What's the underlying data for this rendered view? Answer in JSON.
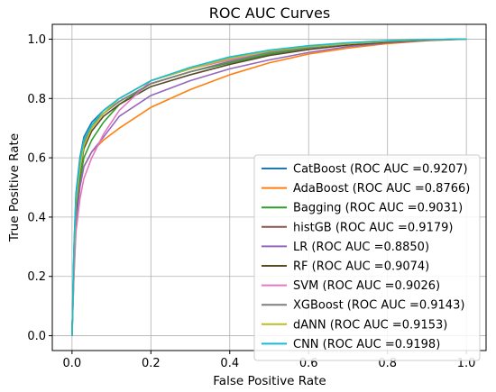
{
  "chart_data": {
    "type": "line",
    "title": "ROC AUC Curves",
    "xlabel": "False Positive Rate",
    "ylabel": "True Positive Rate",
    "xlim": [
      -0.05,
      1.05
    ],
    "ylim": [
      -0.05,
      1.05
    ],
    "xticks": [
      "0.0",
      "0.2",
      "0.4",
      "0.6",
      "0.8",
      "1.0"
    ],
    "yticks": [
      "0.0",
      "0.2",
      "0.4",
      "0.6",
      "0.8",
      "1.0"
    ],
    "grid": true,
    "legend_position": "lower-right",
    "series": [
      {
        "name": "CatBoost (ROC AUC =0.9207)",
        "color": "#1f77b4",
        "x": [
          0,
          0.005,
          0.01,
          0.02,
          0.03,
          0.05,
          0.08,
          0.12,
          0.2,
          0.3,
          0.4,
          0.5,
          0.6,
          0.7,
          0.8,
          0.9,
          1.0
        ],
        "y": [
          0,
          0.3,
          0.48,
          0.6,
          0.67,
          0.72,
          0.76,
          0.8,
          0.86,
          0.9,
          0.935,
          0.96,
          0.975,
          0.985,
          0.993,
          0.998,
          1.0
        ]
      },
      {
        "name": "AdaBoost (ROC AUC =0.8766)",
        "color": "#ff7f0e",
        "x": [
          0,
          0.005,
          0.01,
          0.02,
          0.03,
          0.05,
          0.08,
          0.12,
          0.2,
          0.3,
          0.4,
          0.5,
          0.6,
          0.7,
          0.8,
          0.9,
          1.0
        ],
        "y": [
          0,
          0.22,
          0.38,
          0.5,
          0.57,
          0.62,
          0.66,
          0.7,
          0.77,
          0.83,
          0.88,
          0.92,
          0.95,
          0.97,
          0.985,
          0.995,
          1.0
        ]
      },
      {
        "name": "Bagging (ROC AUC =0.9031)",
        "color": "#2ca02c",
        "x": [
          0,
          0.005,
          0.01,
          0.02,
          0.03,
          0.05,
          0.08,
          0.12,
          0.2,
          0.3,
          0.4,
          0.5,
          0.6,
          0.7,
          0.8,
          0.9,
          1.0
        ],
        "y": [
          0,
          0.25,
          0.4,
          0.52,
          0.6,
          0.66,
          0.72,
          0.78,
          0.85,
          0.89,
          0.92,
          0.95,
          0.97,
          0.985,
          0.993,
          0.998,
          1.0
        ]
      },
      {
        "name": "histGB (ROC AUC =0.9179)",
        "color": "#8c564b",
        "x": [
          0,
          0.005,
          0.01,
          0.02,
          0.03,
          0.05,
          0.08,
          0.12,
          0.2,
          0.3,
          0.4,
          0.5,
          0.6,
          0.7,
          0.8,
          0.9,
          1.0
        ],
        "y": [
          0,
          0.28,
          0.45,
          0.57,
          0.64,
          0.7,
          0.75,
          0.79,
          0.85,
          0.89,
          0.925,
          0.955,
          0.972,
          0.985,
          0.993,
          0.998,
          1.0
        ]
      },
      {
        "name": "LR (ROC AUC =0.8850)",
        "color": "#9467bd",
        "x": [
          0,
          0.005,
          0.01,
          0.02,
          0.03,
          0.05,
          0.08,
          0.12,
          0.2,
          0.3,
          0.4,
          0.5,
          0.6,
          0.7,
          0.8,
          0.9,
          1.0
        ],
        "y": [
          0,
          0.22,
          0.38,
          0.5,
          0.57,
          0.62,
          0.67,
          0.74,
          0.81,
          0.86,
          0.9,
          0.93,
          0.955,
          0.975,
          0.988,
          0.996,
          1.0
        ]
      },
      {
        "name": "RF (ROC AUC =0.9074)",
        "color": "#5b4a2a",
        "x": [
          0,
          0.005,
          0.01,
          0.02,
          0.03,
          0.05,
          0.08,
          0.12,
          0.2,
          0.3,
          0.4,
          0.5,
          0.6,
          0.7,
          0.8,
          0.9,
          1.0
        ],
        "y": [
          0,
          0.26,
          0.42,
          0.55,
          0.63,
          0.69,
          0.74,
          0.78,
          0.84,
          0.88,
          0.915,
          0.945,
          0.965,
          0.98,
          0.99,
          0.997,
          1.0
        ]
      },
      {
        "name": "SVM (ROC AUC =0.9026)",
        "color": "#e377c2",
        "x": [
          0,
          0.005,
          0.01,
          0.02,
          0.03,
          0.05,
          0.08,
          0.12,
          0.2,
          0.3,
          0.4,
          0.5,
          0.6,
          0.7,
          0.8,
          0.9,
          1.0
        ],
        "y": [
          0,
          0.2,
          0.35,
          0.46,
          0.53,
          0.6,
          0.68,
          0.76,
          0.86,
          0.9,
          0.93,
          0.955,
          0.972,
          0.985,
          0.993,
          0.998,
          1.0
        ]
      },
      {
        "name": "XGBoost (ROC AUC =0.9143)",
        "color": "#7f7f7f",
        "x": [
          0,
          0.005,
          0.01,
          0.02,
          0.03,
          0.05,
          0.08,
          0.12,
          0.2,
          0.3,
          0.4,
          0.5,
          0.6,
          0.7,
          0.8,
          0.9,
          1.0
        ],
        "y": [
          0,
          0.28,
          0.45,
          0.57,
          0.65,
          0.71,
          0.75,
          0.79,
          0.85,
          0.89,
          0.925,
          0.955,
          0.972,
          0.985,
          0.993,
          0.998,
          1.0
        ]
      },
      {
        "name": "dANN (ROC AUC =0.9153)",
        "color": "#bcbd22",
        "x": [
          0,
          0.005,
          0.01,
          0.02,
          0.03,
          0.05,
          0.08,
          0.12,
          0.2,
          0.3,
          0.4,
          0.5,
          0.6,
          0.7,
          0.8,
          0.9,
          1.0
        ],
        "y": [
          0,
          0.27,
          0.44,
          0.56,
          0.64,
          0.7,
          0.75,
          0.8,
          0.86,
          0.9,
          0.935,
          0.96,
          0.975,
          0.985,
          0.993,
          0.998,
          1.0
        ]
      },
      {
        "name": "CNN (ROC AUC =0.9198)",
        "color": "#17becf",
        "x": [
          0,
          0.005,
          0.01,
          0.02,
          0.03,
          0.05,
          0.08,
          0.12,
          0.2,
          0.3,
          0.4,
          0.5,
          0.6,
          0.7,
          0.8,
          0.9,
          1.0
        ],
        "y": [
          0,
          0.3,
          0.47,
          0.59,
          0.66,
          0.71,
          0.76,
          0.8,
          0.86,
          0.905,
          0.94,
          0.963,
          0.978,
          0.988,
          0.995,
          0.999,
          1.0
        ]
      }
    ]
  }
}
